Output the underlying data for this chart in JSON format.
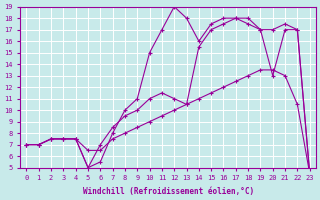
{
  "xlabel": "Windchill (Refroidissement éolien,°C)",
  "bg_color": "#c8eaea",
  "line_color": "#990099",
  "grid_color": "#ffffff",
  "xlim": [
    -0.5,
    23.5
  ],
  "ylim": [
    5,
    19
  ],
  "xticks": [
    0,
    1,
    2,
    3,
    4,
    5,
    6,
    7,
    8,
    9,
    10,
    11,
    12,
    13,
    14,
    15,
    16,
    17,
    18,
    19,
    20,
    21,
    22,
    23
  ],
  "yticks": [
    5,
    6,
    7,
    8,
    9,
    10,
    11,
    12,
    13,
    14,
    15,
    16,
    17,
    18,
    19
  ],
  "curve1_x": [
    0,
    1,
    2,
    3,
    4,
    5,
    6,
    7,
    8,
    9,
    10,
    11,
    12,
    13,
    14,
    15,
    16,
    17,
    18,
    19,
    20,
    21,
    22,
    23
  ],
  "curve1_y": [
    7,
    7,
    7.5,
    7.5,
    7.5,
    6.5,
    6.5,
    7.5,
    8,
    8.5,
    9,
    9.5,
    10,
    10.5,
    11,
    11.5,
    12,
    12.5,
    13,
    13.5,
    13.5,
    13,
    10.5,
    4.5
  ],
  "curve2_x": [
    0,
    1,
    2,
    3,
    4,
    5,
    6,
    7,
    8,
    9,
    10,
    11,
    12,
    13,
    14,
    15,
    16,
    17,
    18,
    19,
    20,
    21,
    22,
    23
  ],
  "curve2_y": [
    7,
    7,
    7.5,
    7.5,
    7.5,
    5.0,
    5.5,
    8,
    10,
    11,
    15,
    17,
    19,
    18,
    16,
    17.5,
    18,
    18,
    17.5,
    17,
    13,
    17,
    17,
    4.5
  ],
  "curve3_x": [
    0,
    1,
    2,
    3,
    4,
    5,
    6,
    7,
    8,
    9,
    10,
    11,
    12,
    13,
    14,
    15,
    16,
    17,
    18,
    19,
    20,
    21,
    22,
    23
  ],
  "curve3_y": [
    7,
    7,
    7.5,
    7.5,
    7.5,
    5.0,
    7,
    8.5,
    9.5,
    10,
    11,
    11.5,
    11,
    10.5,
    15.5,
    17,
    17.5,
    18,
    18,
    17,
    17,
    17.5,
    17,
    4.5
  ]
}
